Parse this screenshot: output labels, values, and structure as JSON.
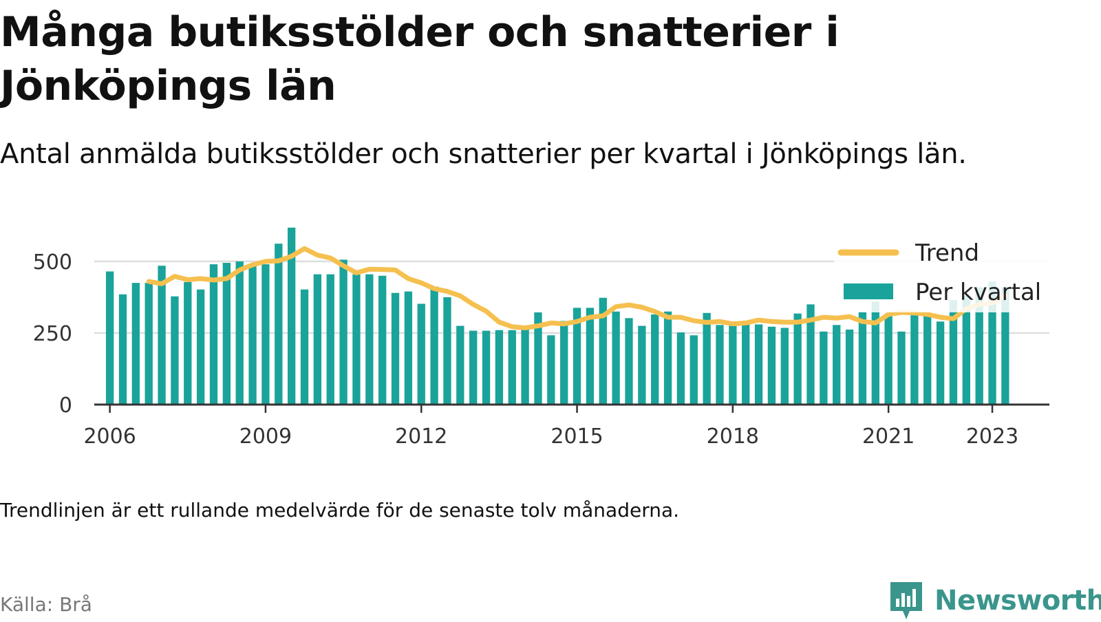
{
  "title": "Många butiksstölder och snatterier i Jönköpings län",
  "subtitle": "Antal anmälda butiksstölder och snatterier per kvartal i Jönköpings län.",
  "note": "Trendlinjen är ett rullande medelvärde för de senaste tolv månaderna.",
  "source": "Källa: Brå",
  "logo": {
    "text": "Newsworthy",
    "icon": "newsworthy-logo-icon"
  },
  "colors": {
    "bar": "#1aa39a",
    "trend": "#f5c04f",
    "grid": "#dddddd",
    "axis": "#333333",
    "logo": "#3a958c"
  },
  "chart_data": {
    "type": "bar",
    "title": "Många butiksstölder och snatterier i Jönköpings län",
    "xlabel": "",
    "ylabel": "",
    "ylim": [
      0,
      620
    ],
    "xlim": [
      2005.7,
      2024.1
    ],
    "yticks": [
      0,
      250,
      500
    ],
    "xticks": [
      2006,
      2009,
      2012,
      2015,
      2018,
      2021,
      2023
    ],
    "grid": true,
    "legend_position": "top-right",
    "legend": [
      "Trend",
      "Per kvartal"
    ],
    "series": [
      {
        "name": "Per kvartal",
        "type": "bar",
        "x": [
          2006.0,
          2006.25,
          2006.5,
          2006.75,
          2007.0,
          2007.25,
          2007.5,
          2007.75,
          2008.0,
          2008.25,
          2008.5,
          2008.75,
          2009.0,
          2009.25,
          2009.5,
          2009.75,
          2010.0,
          2010.25,
          2010.5,
          2010.75,
          2011.0,
          2011.25,
          2011.5,
          2011.75,
          2012.0,
          2012.25,
          2012.5,
          2012.75,
          2013.0,
          2013.25,
          2013.5,
          2013.75,
          2014.0,
          2014.25,
          2014.5,
          2014.75,
          2015.0,
          2015.25,
          2015.5,
          2015.75,
          2016.0,
          2016.25,
          2016.5,
          2016.75,
          2017.0,
          2017.25,
          2017.5,
          2017.75,
          2018.0,
          2018.25,
          2018.5,
          2018.75,
          2019.0,
          2019.25,
          2019.5,
          2019.75,
          2020.0,
          2020.25,
          2020.5,
          2020.75,
          2021.0,
          2021.25,
          2021.5,
          2021.75,
          2022.0,
          2022.25,
          2022.5,
          2022.75,
          2023.0,
          2023.25
        ],
        "values": [
          465,
          385,
          425,
          425,
          485,
          378,
          428,
          402,
          490,
          495,
          500,
          485,
          490,
          562,
          618,
          402,
          455,
          455,
          506,
          455,
          455,
          450,
          390,
          395,
          352,
          412,
          375,
          275,
          258,
          258,
          260,
          260,
          262,
          322,
          242,
          292,
          338,
          338,
          373,
          325,
          302,
          275,
          315,
          325,
          252,
          242,
          320,
          278,
          275,
          290,
          280,
          272,
          268,
          318,
          350,
          255,
          278,
          262,
          325,
          360,
          318,
          255,
          312,
          320,
          290,
          365,
          380,
          410,
          430,
          410
        ]
      },
      {
        "name": "Trend",
        "type": "line",
        "x": [
          2006.75,
          2007.0,
          2007.25,
          2007.5,
          2007.75,
          2008.0,
          2008.25,
          2008.5,
          2008.75,
          2009.0,
          2009.25,
          2009.5,
          2009.75,
          2010.0,
          2010.25,
          2010.5,
          2010.75,
          2011.0,
          2011.25,
          2011.5,
          2011.75,
          2012.0,
          2012.25,
          2012.5,
          2012.75,
          2013.0,
          2013.25,
          2013.5,
          2013.75,
          2014.0,
          2014.25,
          2014.5,
          2014.75,
          2015.0,
          2015.25,
          2015.5,
          2015.75,
          2016.0,
          2016.25,
          2016.5,
          2016.75,
          2017.0,
          2017.25,
          2017.5,
          2017.75,
          2018.0,
          2018.25,
          2018.5,
          2018.75,
          2019.0,
          2019.25,
          2019.5,
          2019.75,
          2020.0,
          2020.25,
          2020.5,
          2020.75,
          2021.0,
          2021.25,
          2021.5,
          2021.75,
          2022.0,
          2022.25,
          2022.5,
          2022.75,
          2023.0,
          2023.25
        ],
        "values": [
          430,
          422,
          448,
          436,
          440,
          435,
          440,
          470,
          488,
          500,
          502,
          518,
          545,
          522,
          512,
          485,
          460,
          473,
          472,
          470,
          440,
          425,
          405,
          395,
          380,
          350,
          326,
          288,
          272,
          268,
          275,
          285,
          282,
          290,
          305,
          310,
          342,
          348,
          340,
          325,
          305,
          305,
          293,
          287,
          290,
          282,
          285,
          295,
          290,
          288,
          288,
          295,
          305,
          302,
          307,
          290,
          285,
          315,
          322,
          320,
          315,
          305,
          300,
          335,
          350,
          355,
          380
        ]
      }
    ]
  }
}
